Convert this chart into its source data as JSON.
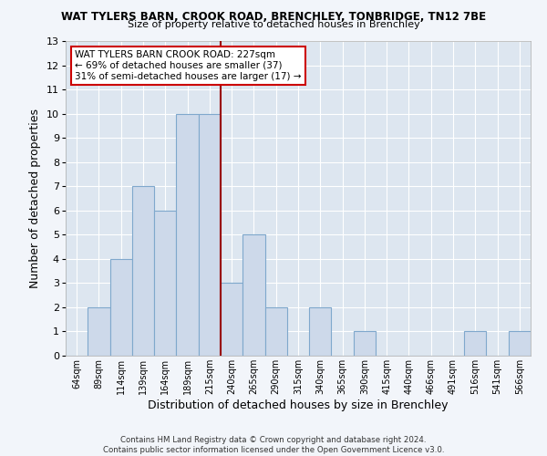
{
  "title": "WAT TYLERS BARN, CROOK ROAD, BRENCHLEY, TONBRIDGE, TN12 7BE",
  "subtitle": "Size of property relative to detached houses in Brenchley",
  "xlabel": "Distribution of detached houses by size in Brenchley",
  "ylabel": "Number of detached properties",
  "categories": [
    "64sqm",
    "89sqm",
    "114sqm",
    "139sqm",
    "164sqm",
    "189sqm",
    "215sqm",
    "240sqm",
    "265sqm",
    "290sqm",
    "315sqm",
    "340sqm",
    "365sqm",
    "390sqm",
    "415sqm",
    "440sqm",
    "466sqm",
    "491sqm",
    "516sqm",
    "541sqm",
    "566sqm"
  ],
  "values": [
    0,
    2,
    4,
    7,
    6,
    10,
    10,
    3,
    5,
    2,
    0,
    2,
    0,
    1,
    0,
    0,
    0,
    0,
    1,
    0,
    1
  ],
  "bar_color": "#cdd9ea",
  "bar_edge_color": "#7fa8cc",
  "vline_x": 6.5,
  "vline_color": "#990000",
  "ylim": [
    0,
    13
  ],
  "yticks": [
    0,
    1,
    2,
    3,
    4,
    5,
    6,
    7,
    8,
    9,
    10,
    11,
    12,
    13
  ],
  "plot_bg_color": "#dde6f0",
  "fig_bg_color": "#f2f5fa",
  "grid_color": "#ffffff",
  "annotation_text": "WAT TYLERS BARN CROOK ROAD: 227sqm\n← 69% of detached houses are smaller (37)\n31% of semi-detached houses are larger (17) →",
  "annotation_box_color": "#ffffff",
  "annotation_box_edge": "#cc0000",
  "footer": "Contains HM Land Registry data © Crown copyright and database right 2024.\nContains public sector information licensed under the Open Government Licence v3.0."
}
